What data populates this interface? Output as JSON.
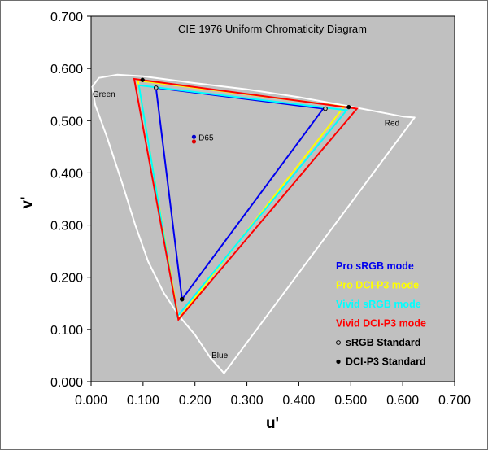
{
  "chart_data": {
    "type": "line",
    "title": "CIE 1976 Uniform Chromaticity Diagram",
    "xlabel": "u'",
    "ylabel": "v'",
    "xlim": [
      0.0,
      0.7
    ],
    "ylim": [
      0.0,
      0.7
    ],
    "x_ticks": [
      "0.000",
      "0.100",
      "0.200",
      "0.300",
      "0.400",
      "0.500",
      "0.600",
      "0.700"
    ],
    "y_ticks": [
      "0.000",
      "0.100",
      "0.200",
      "0.300",
      "0.400",
      "0.500",
      "0.600",
      "0.700"
    ],
    "grid": false,
    "background": "#c0c0c0",
    "legend_position": "bottom-right",
    "spectral_locus": {
      "color": "#ffffff",
      "points": [
        [
          0.256,
          0.016
        ],
        [
          0.23,
          0.045
        ],
        [
          0.2,
          0.09
        ],
        [
          0.17,
          0.125
        ],
        [
          0.14,
          0.17
        ],
        [
          0.11,
          0.23
        ],
        [
          0.085,
          0.3
        ],
        [
          0.06,
          0.38
        ],
        [
          0.03,
          0.47
        ],
        [
          0.008,
          0.53
        ],
        [
          0.002,
          0.565
        ],
        [
          0.015,
          0.582
        ],
        [
          0.05,
          0.588
        ],
        [
          0.1,
          0.585
        ],
        [
          0.2,
          0.572
        ],
        [
          0.3,
          0.56
        ],
        [
          0.4,
          0.545
        ],
        [
          0.5,
          0.527
        ],
        [
          0.6,
          0.508
        ],
        [
          0.623,
          0.506
        ],
        [
          0.256,
          0.016
        ]
      ]
    },
    "region_labels": [
      {
        "text": "Green",
        "x": 0.003,
        "y": 0.546
      },
      {
        "text": "Red",
        "x": 0.565,
        "y": 0.49
      },
      {
        "text": "Blue",
        "x": 0.232,
        "y": 0.045
      },
      {
        "text": "D65",
        "x": 0.207,
        "y": 0.462
      }
    ],
    "series": [
      {
        "name": "Pro sRGB mode",
        "color": "#0000ee",
        "points": [
          [
            0.125,
            0.563
          ],
          [
            0.447,
            0.523
          ],
          [
            0.175,
            0.158
          ]
        ]
      },
      {
        "name": "Pro DCI-P3 mode",
        "color": "#ffff00",
        "points": [
          [
            0.09,
            0.577
          ],
          [
            0.487,
            0.527
          ],
          [
            0.168,
            0.12
          ]
        ]
      },
      {
        "name": "Vivid sRGB mode",
        "color": "#00ffff",
        "points": [
          [
            0.092,
            0.568
          ],
          [
            0.492,
            0.52
          ],
          [
            0.166,
            0.125
          ]
        ]
      },
      {
        "name": "Vivid DCI-P3 mode",
        "color": "#ff0000",
        "points": [
          [
            0.083,
            0.58
          ],
          [
            0.512,
            0.523
          ],
          [
            0.168,
            0.119
          ]
        ]
      }
    ],
    "standard_points": [
      {
        "name": "sRGB Standard",
        "style": "hollow",
        "points": [
          [
            0.125,
            0.563
          ],
          [
            0.451,
            0.523
          ],
          [
            0.175,
            0.158
          ]
        ]
      },
      {
        "name": "DCI-P3 Standard",
        "style": "filled",
        "points": [
          [
            0.099,
            0.578
          ],
          [
            0.496,
            0.526
          ],
          [
            0.175,
            0.158
          ]
        ]
      }
    ],
    "white_points": [
      {
        "color": "#0000cc",
        "x": 0.198,
        "y": 0.469
      },
      {
        "color": "#dd0000",
        "x": 0.198,
        "y": 0.46
      }
    ],
    "legend": [
      {
        "text": "Pro sRGB mode",
        "color": "#0000ee",
        "marker": "none"
      },
      {
        "text": "Pro DCI-P3 mode",
        "color": "#ffff00",
        "marker": "none"
      },
      {
        "text": "Vivid sRGB mode",
        "color": "#00ffff",
        "marker": "none"
      },
      {
        "text": "Vivid DCI-P3 mode",
        "color": "#ff0000",
        "marker": "none"
      },
      {
        "text": "sRGB Standard",
        "color": "#000000",
        "marker": "hollow"
      },
      {
        "text": "DCI-P3 Standard",
        "color": "#000000",
        "marker": "filled"
      }
    ]
  }
}
